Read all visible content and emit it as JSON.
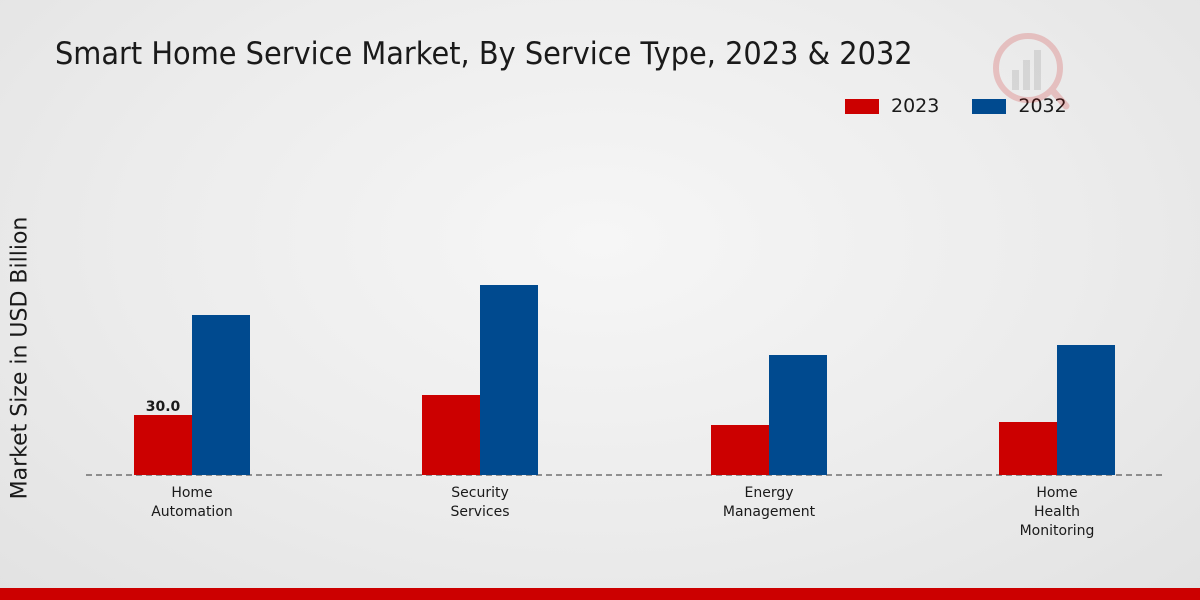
{
  "chart_data": {
    "type": "bar",
    "title": "Smart Home Service Market, By Service Type, 2023 & 2032",
    "xlabel": "",
    "ylabel": "Market Size in USD Billion",
    "categories": [
      [
        "Home",
        "Automation"
      ],
      [
        "Security",
        "Services"
      ],
      [
        "Energy",
        "Management"
      ],
      [
        "Home",
        "Health",
        "Monitoring"
      ]
    ],
    "series": [
      {
        "name": "2023",
        "color": "#cc0000",
        "values": [
          30.0,
          40.0,
          25.0,
          26.5
        ]
      },
      {
        "name": "2032",
        "color": "#004a8f",
        "values": [
          80.0,
          95.0,
          60.0,
          65.0
        ]
      }
    ],
    "data_labels": [
      {
        "series": "2023",
        "category_index": 0,
        "text": "30.0"
      }
    ],
    "ylim": [
      0,
      160
    ],
    "legend_position": "top-right",
    "grid": false
  }
}
